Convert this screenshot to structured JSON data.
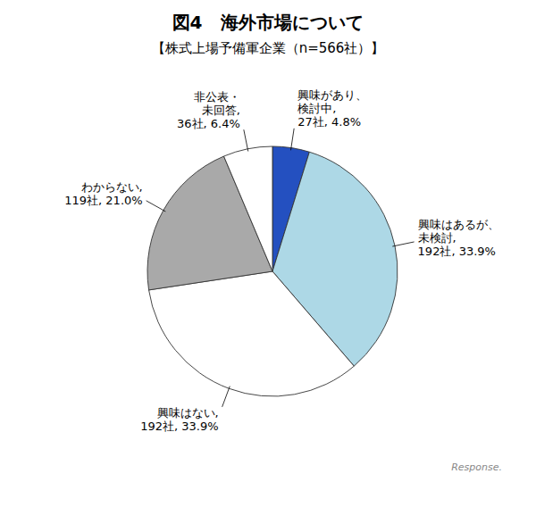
{
  "chart_data": {
    "type": "pie",
    "title": "図4   海外市場について",
    "subtitle": "【株式上場予備軍企業（n=566社）】",
    "categories": [
      "興味があり、\n検討中,\n27社, 4.8%",
      "興味はあるが、\n未検討,\n192社, 33.9%",
      "興味はない,\n192社, 33.9%",
      "わからない,\n119社, 21.0%",
      "非公表・\n未回答,\n36社, 6.4%"
    ],
    "values": [
      27,
      192,
      192,
      119,
      36
    ],
    "colors": [
      "#2450C0",
      "#ADD8E6",
      "#FFFFFF",
      "#A9A9A9",
      "#FFFFFF"
    ],
    "annotations": [
      "Response."
    ]
  }
}
